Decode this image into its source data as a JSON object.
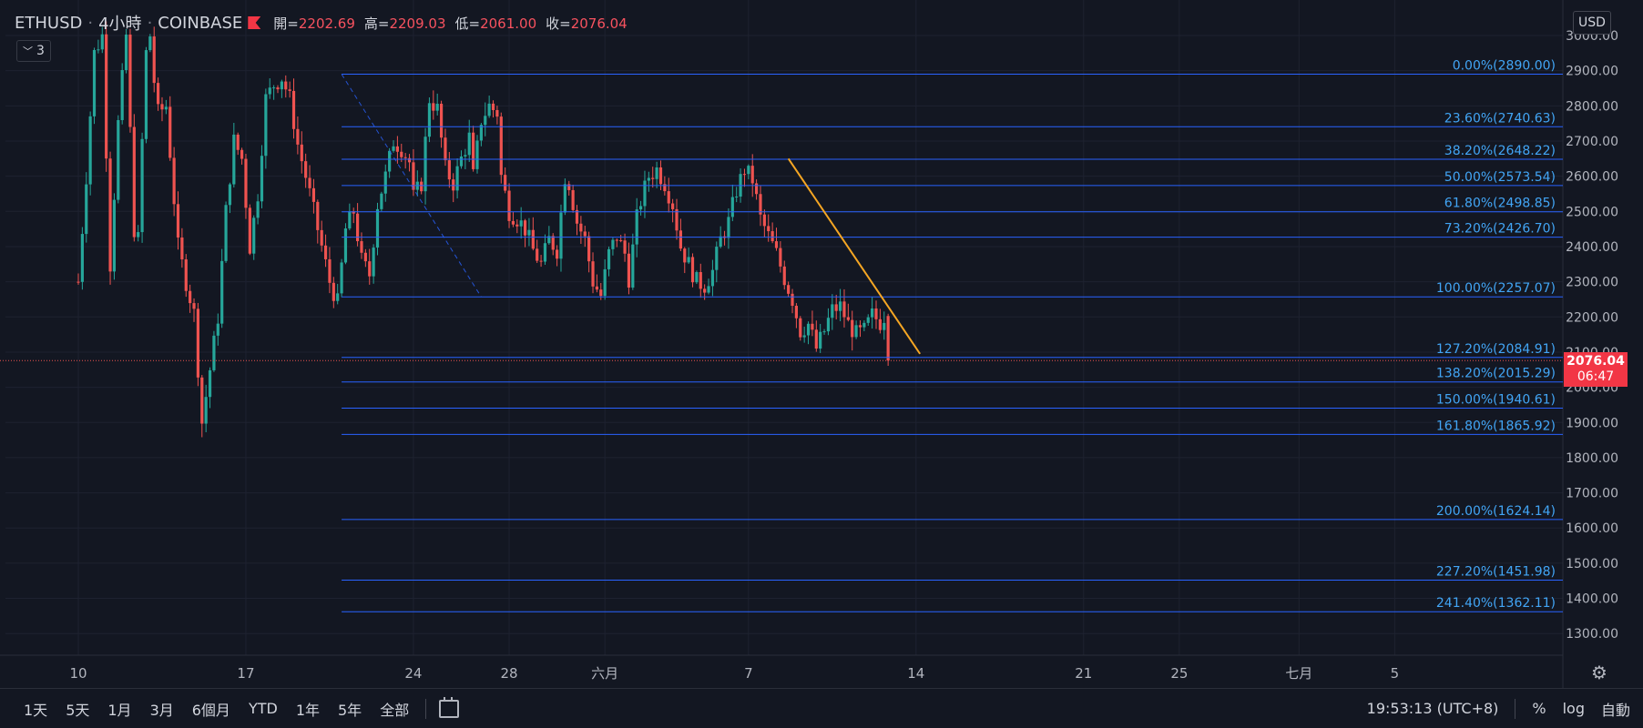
{
  "header": {
    "symbol": "ETHUSD",
    "interval": "4小時",
    "exchange": "COINBASE",
    "open_label": "開=",
    "open": "2202.69",
    "high_label": "高=",
    "high": "2209.03",
    "low_label": "低=",
    "low": "2061.00",
    "close_label": "收=",
    "close": "2076.04"
  },
  "indicator_toggle": {
    "count": "3"
  },
  "currency_button": "USD",
  "price_tag": {
    "price": "2076.04",
    "countdown": "06:47"
  },
  "bottom_bar": {
    "ranges": [
      "1天",
      "5天",
      "1月",
      "3月",
      "6個月",
      "YTD",
      "1年",
      "5年",
      "全部"
    ],
    "time": "19:53:13 (UTC+8)",
    "percent": "%",
    "log": "log",
    "auto": "自動"
  },
  "colors": {
    "background": "#131722",
    "up": "#26a69a",
    "down": "#ef5350",
    "fib_line": "#2962ff",
    "fib_text": "#42a5f5",
    "trendline": "#f5a623",
    "price_tag": "#f23645"
  },
  "icons": {
    "indicator": "chevron-down-icon",
    "calendar": "calendar-range-icon",
    "settings": "gear-icon",
    "flag": "flag-icon"
  },
  "chart_data": {
    "type": "candlestick",
    "y_range": [
      1200,
      3050
    ],
    "y_ticks": [
      3000,
      2900,
      2800,
      2700,
      2600,
      2500,
      2400,
      2300,
      2200,
      2100,
      2000,
      1900,
      1800,
      1700,
      1600,
      1500,
      1400,
      1300
    ],
    "y_tick_labels": [
      "3000.00",
      "2900.00",
      "2800.00",
      "2700.00",
      "2600.00",
      "2500.00",
      "2400.00",
      "2300.00",
      "2200.00",
      "2100.00",
      "2000.00",
      "1900.00",
      "1800.00",
      "1700.00",
      "1600.00",
      "1500.00",
      "1400.00",
      "1300.00"
    ],
    "x_ticks": [
      {
        "label": "10",
        "t": 0
      },
      {
        "label": "17",
        "t": 42
      },
      {
        "label": "24",
        "t": 84
      },
      {
        "label": "28",
        "t": 108
      },
      {
        "label": "六月",
        "t": 132
      },
      {
        "label": "7",
        "t": 168
      },
      {
        "label": "14",
        "t": 210
      },
      {
        "label": "21",
        "t": 252
      },
      {
        "label": "25",
        "t": 276
      },
      {
        "label": "七月",
        "t": 306
      },
      {
        "label": "5",
        "t": 330
      }
    ],
    "last_price": 2076.04,
    "waypoints": [
      [
        0,
        2300
      ],
      [
        2,
        2600
      ],
      [
        4,
        2950
      ],
      [
        6,
        3000
      ],
      [
        8,
        2350
      ],
      [
        10,
        2750
      ],
      [
        12,
        3000
      ],
      [
        14,
        2450
      ],
      [
        15,
        2420
      ],
      [
        16,
        2700
      ],
      [
        17,
        2950
      ],
      [
        18,
        3000
      ],
      [
        19,
        2870
      ],
      [
        20,
        2780
      ],
      [
        22,
        2800
      ],
      [
        25,
        2400
      ],
      [
        27,
        2300
      ],
      [
        29,
        2210
      ],
      [
        31,
        1900
      ],
      [
        33,
        2050
      ],
      [
        35,
        2200
      ],
      [
        37,
        2500
      ],
      [
        39,
        2700
      ],
      [
        41,
        2650
      ],
      [
        43,
        2400
      ],
      [
        45,
        2550
      ],
      [
        47,
        2820
      ],
      [
        49,
        2860
      ],
      [
        51,
        2880
      ],
      [
        53,
        2820
      ],
      [
        55,
        2690
      ],
      [
        57,
        2600
      ],
      [
        59,
        2500
      ],
      [
        61,
        2400
      ],
      [
        63,
        2300
      ],
      [
        65,
        2240
      ],
      [
        67,
        2450
      ],
      [
        69,
        2500
      ],
      [
        71,
        2360
      ],
      [
        73,
        2320
      ],
      [
        75,
        2520
      ],
      [
        77,
        2600
      ],
      [
        79,
        2700
      ],
      [
        81,
        2680
      ],
      [
        83,
        2640
      ],
      [
        84,
        2540
      ],
      [
        86,
        2580
      ],
      [
        88,
        2820
      ],
      [
        90,
        2790
      ],
      [
        92,
        2620
      ],
      [
        94,
        2580
      ],
      [
        96,
        2650
      ],
      [
        98,
        2710
      ],
      [
        99,
        2600
      ],
      [
        101,
        2760
      ],
      [
        103,
        2800
      ],
      [
        105,
        2780
      ],
      [
        106,
        2600
      ],
      [
        108,
        2500
      ],
      [
        110,
        2480
      ],
      [
        112,
        2450
      ],
      [
        114,
        2390
      ],
      [
        116,
        2350
      ],
      [
        118,
        2420
      ],
      [
        120,
        2390
      ],
      [
        122,
        2600
      ],
      [
        123,
        2580
      ],
      [
        125,
        2470
      ],
      [
        127,
        2420
      ],
      [
        129,
        2300
      ],
      [
        131,
        2260
      ],
      [
        133,
        2380
      ],
      [
        135,
        2430
      ],
      [
        137,
        2380
      ],
      [
        138,
        2310
      ],
      [
        140,
        2480
      ],
      [
        141,
        2530
      ],
      [
        143,
        2600
      ],
      [
        145,
        2620
      ],
      [
        147,
        2580
      ],
      [
        149,
        2520
      ],
      [
        151,
        2400
      ],
      [
        153,
        2350
      ],
      [
        155,
        2300
      ],
      [
        157,
        2290
      ],
      [
        159,
        2330
      ],
      [
        161,
        2420
      ],
      [
        163,
        2470
      ],
      [
        165,
        2560
      ],
      [
        167,
        2620
      ],
      [
        169,
        2590
      ],
      [
        171,
        2480
      ],
      [
        173,
        2430
      ],
      [
        175,
        2380
      ],
      [
        177,
        2310
      ],
      [
        179,
        2250
      ],
      [
        181,
        2160
      ],
      [
        183,
        2180
      ],
      [
        185,
        2110
      ],
      [
        187,
        2160
      ],
      [
        189,
        2220
      ],
      [
        191,
        2230
      ],
      [
        193,
        2180
      ],
      [
        195,
        2150
      ],
      [
        197,
        2160
      ],
      [
        199,
        2205
      ],
      [
        201,
        2185
      ],
      [
        202,
        2203
      ],
      [
        203,
        2076
      ]
    ],
    "drawings": {
      "fib_anchor_high": {
        "t": 66,
        "price": 2890.0
      },
      "fib_anchor_low": {
        "t": 101,
        "price": 2257.07
      },
      "fib_levels": [
        {
          "label": "0.00%(2890.00)",
          "price": 2890.0
        },
        {
          "label": "23.60%(2740.63)",
          "price": 2740.63
        },
        {
          "label": "38.20%(2648.22)",
          "price": 2648.22
        },
        {
          "label": "50.00%(2573.54)",
          "price": 2573.54
        },
        {
          "label": "61.80%(2498.85)",
          "price": 2498.85
        },
        {
          "label": "73.20%(2426.70)",
          "price": 2426.7
        },
        {
          "label": "100.00%(2257.07)",
          "price": 2257.07
        },
        {
          "label": "127.20%(2084.91)",
          "price": 2084.91
        },
        {
          "label": "138.20%(2015.29)",
          "price": 2015.29
        },
        {
          "label": "150.00%(1940.61)",
          "price": 1940.61
        },
        {
          "label": "161.80%(1865.92)",
          "price": 1865.92
        },
        {
          "label": "200.00%(1624.14)",
          "price": 1624.14
        },
        {
          "label": "227.20%(1451.98)",
          "price": 1451.98
        },
        {
          "label": "241.40%(1362.11)",
          "price": 1362.11
        }
      ],
      "trendline": {
        "from": {
          "t": 178,
          "price": 2650
        },
        "to": {
          "t": 211,
          "price": 2095
        }
      }
    }
  }
}
